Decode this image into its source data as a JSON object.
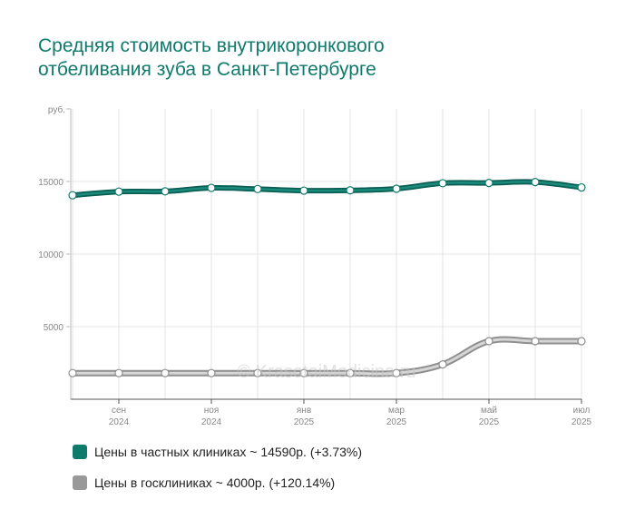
{
  "title_lines": [
    "Средняя стоимость внутрикоронкового",
    "отбеливания зуба в Санкт-Петербурге"
  ],
  "watermark": "© KrasotaiMedicina.ru",
  "legend": [
    {
      "text": "Цены в частных клиниках ~ 14590р. (+3.73%)",
      "color": "#0f7a6c"
    },
    {
      "text": "Цены в госклиниках ~ 4000р. (+120.14%)",
      "color": "#999999"
    }
  ],
  "chart_data": {
    "type": "line",
    "title": "Средняя стоимость внутрикоронкового отбеливания зуба в Санкт-Петербурге",
    "ylabel": "руб.",
    "ylim": [
      0,
      20000
    ],
    "yticks": [
      "5000",
      "10000",
      "15000"
    ],
    "x_points": 12,
    "xticks": [
      {
        "index": 1,
        "month": "сен",
        "year": "2024"
      },
      {
        "index": 3,
        "month": "ноя",
        "year": "2024"
      },
      {
        "index": 5,
        "month": "янв",
        "year": "2025"
      },
      {
        "index": 7,
        "month": "мар",
        "year": "2025"
      },
      {
        "index": 9,
        "month": "май",
        "year": "2025"
      },
      {
        "index": 11,
        "month": "июл",
        "year": "2025"
      }
    ],
    "grid": true,
    "series": [
      {
        "name": "Цены в частных клиниках",
        "color": "#0f7a6c",
        "values": [
          14050,
          14300,
          14320,
          14560,
          14480,
          14370,
          14390,
          14500,
          14880,
          14900,
          14960,
          14590
        ]
      },
      {
        "name": "Цены в госклиниках",
        "color": "#999999",
        "values": [
          1800,
          1800,
          1800,
          1800,
          1800,
          1800,
          1800,
          1800,
          2400,
          4000,
          4000,
          4000
        ]
      }
    ]
  }
}
